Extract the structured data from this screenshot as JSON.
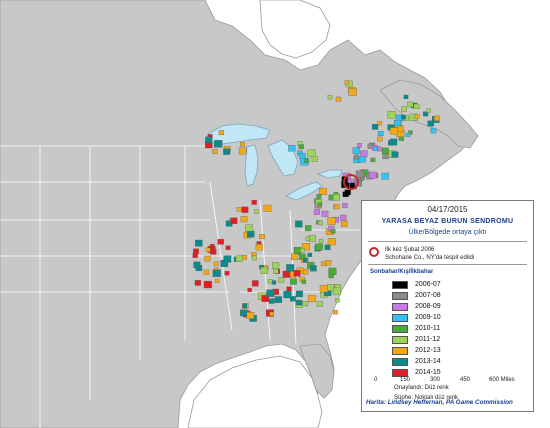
{
  "map": {
    "colors": {
      "ocean": "#ffffff",
      "land": "#c8c8c8",
      "land_outer": "#ffffff",
      "borders": "#ffffff",
      "lakes": "#bfe7f5",
      "lake_outline": "#7fa7b8"
    },
    "legend": {
      "date": "04/17/2015",
      "title": "YARASA BEYAZ BURUN SENDROMU",
      "subtitle": "Ülke/Bölgede ortaya çıktı",
      "first_detection_line1": "İlk kez Şubat 2006",
      "first_detection_line2": "Schoharie Co., NY'da tespit edildi",
      "season_header": "Sonbahar/Kış/İlkbahar",
      "seasons": [
        {
          "label": "2006-07",
          "color": "#000000"
        },
        {
          "label": "2007-08",
          "color": "#8c8c8c"
        },
        {
          "label": "2008-09",
          "color": "#c77be0"
        },
        {
          "label": "2009-10",
          "color": "#33c3f2"
        },
        {
          "label": "2010-11",
          "color": "#4bab3a"
        },
        {
          "label": "2011-12",
          "color": "#9fd25a"
        },
        {
          "label": "2012-13",
          "color": "#f2a81b"
        },
        {
          "label": "2013-14",
          "color": "#0c8a8c"
        },
        {
          "label": "2014-15",
          "color": "#e21f26"
        }
      ],
      "confirmed_note": "Onaylandı: Düz renk",
      "suspect_note": "Şüphe: Noktalı düz renk",
      "scale": {
        "ticks": [
          "0",
          "150",
          "300",
          "450",
          "600 Miles"
        ]
      }
    },
    "credit": "Harita: Lindsey Heffernan, PA Game Commission"
  }
}
